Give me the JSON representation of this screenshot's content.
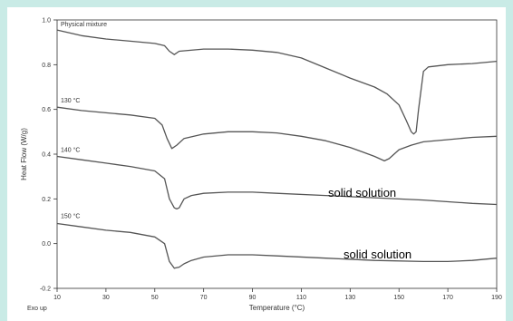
{
  "chart_data": {
    "type": "line",
    "title": "",
    "xlabel": "Temperature (°C)",
    "ylabel": "Heat Flow (W/g)",
    "xlim": [
      10,
      190
    ],
    "ylim": [
      -0.2,
      1.0
    ],
    "x_ticks": [
      "10",
      "30",
      "50",
      "70",
      "90",
      "110",
      "130",
      "150",
      "170",
      "190"
    ],
    "y_ticks": [
      "1.0",
      "0.8",
      "0.6",
      "0.4",
      "0.2",
      "0.0",
      "-0.2"
    ],
    "corner_note": "Exo up",
    "annotations": [
      "solid solution",
      "solid solution"
    ],
    "line_color": "#555555",
    "series": [
      {
        "name": "Physical mixture",
        "x": [
          10,
          20,
          30,
          40,
          50,
          54,
          56,
          58,
          60,
          70,
          80,
          90,
          100,
          110,
          120,
          130,
          140,
          145,
          150,
          153,
          155,
          156,
          157,
          158,
          160,
          162,
          170,
          180,
          190
        ],
        "y": [
          0.955,
          0.93,
          0.915,
          0.905,
          0.895,
          0.885,
          0.86,
          0.845,
          0.86,
          0.87,
          0.87,
          0.865,
          0.855,
          0.83,
          0.785,
          0.74,
          0.7,
          0.67,
          0.62,
          0.55,
          0.5,
          0.49,
          0.5,
          0.6,
          0.77,
          0.79,
          0.8,
          0.805,
          0.815
        ]
      },
      {
        "name": "130 °C",
        "x": [
          10,
          20,
          30,
          40,
          50,
          53,
          55,
          57,
          59,
          62,
          70,
          80,
          90,
          100,
          110,
          120,
          130,
          135,
          140,
          144,
          146,
          150,
          155,
          160,
          170,
          180,
          190
        ],
        "y": [
          0.61,
          0.595,
          0.585,
          0.575,
          0.56,
          0.53,
          0.47,
          0.425,
          0.44,
          0.47,
          0.49,
          0.5,
          0.5,
          0.495,
          0.48,
          0.46,
          0.43,
          0.41,
          0.39,
          0.37,
          0.38,
          0.42,
          0.44,
          0.455,
          0.465,
          0.475,
          0.48
        ]
      },
      {
        "name": "140 °C",
        "x": [
          10,
          20,
          30,
          40,
          50,
          54,
          56,
          58,
          59,
          60,
          62,
          65,
          70,
          80,
          90,
          100,
          120,
          140,
          160,
          180,
          190
        ],
        "y": [
          0.39,
          0.375,
          0.36,
          0.345,
          0.325,
          0.29,
          0.2,
          0.16,
          0.155,
          0.16,
          0.2,
          0.215,
          0.225,
          0.23,
          0.23,
          0.225,
          0.215,
          0.205,
          0.195,
          0.18,
          0.175
        ]
      },
      {
        "name": "150 °C",
        "x": [
          10,
          20,
          30,
          40,
          50,
          54,
          56,
          58,
          60,
          62,
          65,
          70,
          80,
          90,
          100,
          120,
          140,
          160,
          170,
          180,
          190
        ],
        "y": [
          0.09,
          0.075,
          0.06,
          0.05,
          0.03,
          0.0,
          -0.08,
          -0.11,
          -0.105,
          -0.09,
          -0.075,
          -0.06,
          -0.05,
          -0.05,
          -0.055,
          -0.065,
          -0.075,
          -0.08,
          -0.08,
          -0.075,
          -0.065
        ]
      }
    ]
  }
}
